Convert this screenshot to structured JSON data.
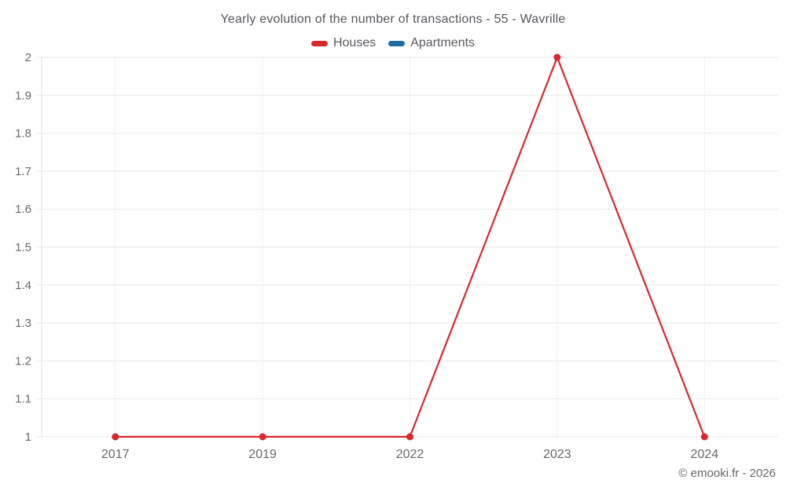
{
  "title": "Yearly evolution of the number of transactions - 55 - Wavrille",
  "copyright": "© emooki.fr - 2026",
  "chart_data": {
    "type": "line",
    "title": "Yearly evolution of the number of transactions - 55 - Wavrille",
    "categories": [
      "2017",
      "2019",
      "2022",
      "2023",
      "2024"
    ],
    "series": [
      {
        "name": "Houses",
        "color": "#d9272e",
        "values": [
          1,
          1,
          1,
          2,
          1
        ]
      },
      {
        "name": "Apartments",
        "color": "#1a6d9e",
        "values": []
      }
    ],
    "xlabel": "",
    "ylabel": "",
    "ylim": [
      1,
      2
    ],
    "ytick_step": 0.1,
    "ytick_labels": [
      "1",
      "1.1",
      "1.2",
      "1.3",
      "1.4",
      "1.5",
      "1.6",
      "1.7",
      "1.8",
      "1.9",
      "2"
    ],
    "grid": true,
    "legend_position": "top",
    "colors": {
      "horizontal_gridline": "#e8e8e8",
      "vertical_gridline": "#f0f0f0",
      "axis_line": "#dcdcdc",
      "tick_text": "#666769",
      "title_text": "#55565a"
    }
  }
}
